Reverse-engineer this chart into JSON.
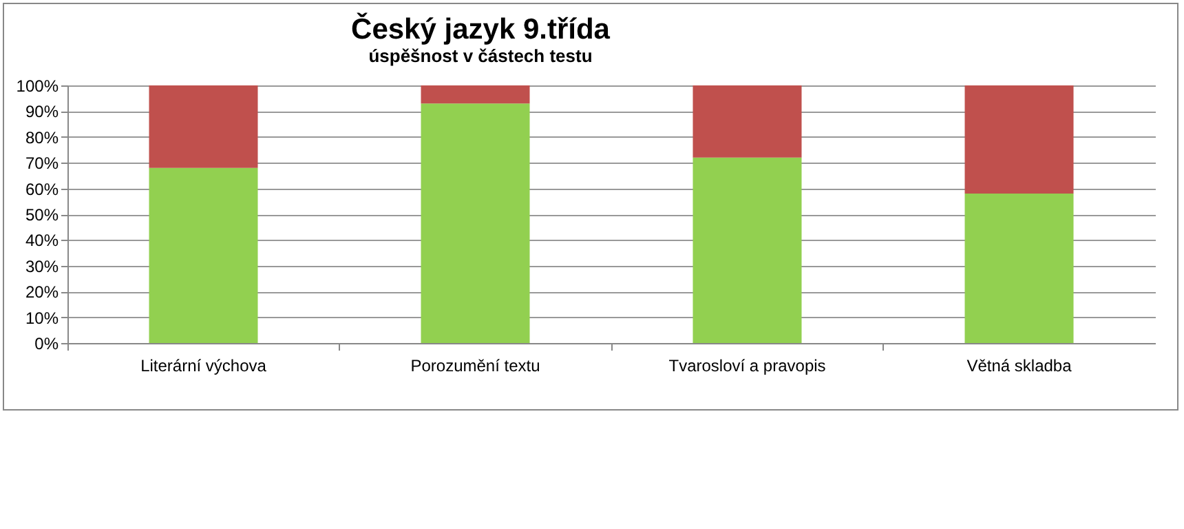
{
  "chart_data": {
    "type": "bar",
    "title": "Český jazyk 9.třída",
    "subtitle": "úspěšnost v částech testu",
    "stacked": true,
    "categories": [
      "Literární výchova",
      "Porozumění textu",
      "Tvarosloví a pravopis",
      "Větná skladba"
    ],
    "series": [
      {
        "color": "#92d050",
        "values": [
          68,
          93,
          72,
          58
        ]
      },
      {
        "color": "#c0504d",
        "values": [
          32,
          7,
          28,
          42
        ]
      }
    ],
    "ylim": [
      0,
      100
    ],
    "yticks": [
      {
        "value": 0,
        "label": "0%"
      },
      {
        "value": 10,
        "label": "10%"
      },
      {
        "value": 20,
        "label": "20%"
      },
      {
        "value": 30,
        "label": "30%"
      },
      {
        "value": 40,
        "label": "40%"
      },
      {
        "value": 50,
        "label": "50%"
      },
      {
        "value": 60,
        "label": "60%"
      },
      {
        "value": 70,
        "label": "70%"
      },
      {
        "value": 80,
        "label": "80%"
      },
      {
        "value": 90,
        "label": "90%"
      },
      {
        "value": 100,
        "label": "100%"
      }
    ],
    "grid": "y",
    "legend": false
  }
}
